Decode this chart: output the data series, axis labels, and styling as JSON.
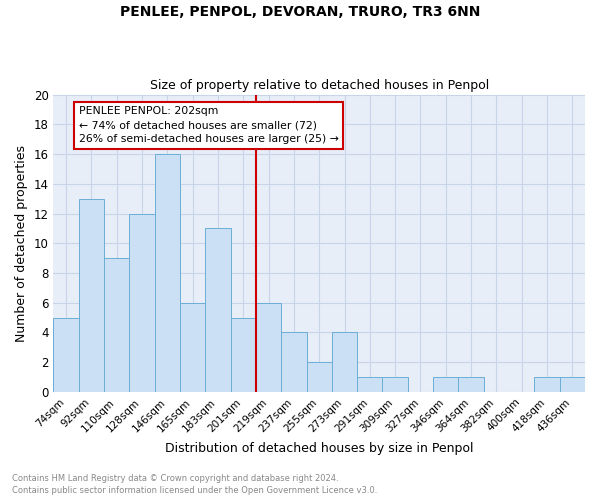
{
  "title1": "PENLEE, PENPOL, DEVORAN, TRURO, TR3 6NN",
  "title2": "Size of property relative to detached houses in Penpol",
  "xlabel": "Distribution of detached houses by size in Penpol",
  "ylabel": "Number of detached properties",
  "categories": [
    "74sqm",
    "92sqm",
    "110sqm",
    "128sqm",
    "146sqm",
    "165sqm",
    "183sqm",
    "201sqm",
    "219sqm",
    "237sqm",
    "255sqm",
    "273sqm",
    "291sqm",
    "309sqm",
    "327sqm",
    "346sqm",
    "364sqm",
    "382sqm",
    "400sqm",
    "418sqm",
    "436sqm"
  ],
  "values": [
    5,
    13,
    9,
    12,
    16,
    6,
    11,
    5,
    6,
    4,
    2,
    4,
    1,
    1,
    0,
    1,
    1,
    0,
    0,
    1,
    1
  ],
  "bar_color": "#cce0f5",
  "bar_edge_color": "#6baed6",
  "vline_color": "#cc0000",
  "annotation_text": "PENLEE PENPOL: 202sqm\n← 74% of detached houses are smaller (72)\n26% of semi-detached houses are larger (25) →",
  "annotation_box_color": "#ffffff",
  "annotation_box_edge": "#cc0000",
  "ylim": [
    0,
    20
  ],
  "yticks": [
    0,
    2,
    4,
    6,
    8,
    10,
    12,
    14,
    16,
    18,
    20
  ],
  "footnote1": "Contains HM Land Registry data © Crown copyright and database right 2024.",
  "footnote2": "Contains public sector information licensed under the Open Government Licence v3.0.",
  "grid_color": "#c8d4e8",
  "background_color": "#e8eef8"
}
